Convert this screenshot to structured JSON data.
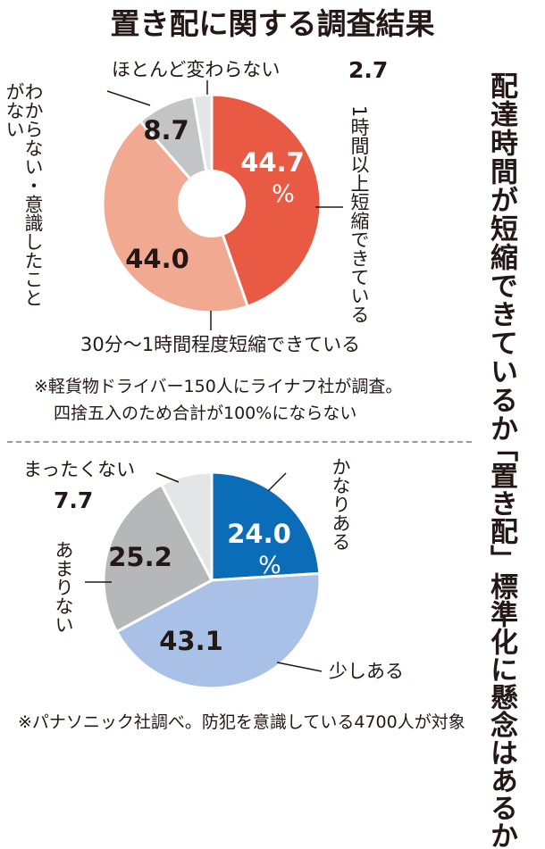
{
  "title": "置き配に関する調査結果",
  "chart_data": [
    {
      "type": "pie",
      "donut": true,
      "title": "配達時間が短縮できているか",
      "slices": [
        {
          "label": "1時間以上短縮できている",
          "value": 44.7,
          "display": "44.7",
          "unit": "%",
          "color": "#e85a43",
          "text_color": "#ffffff"
        },
        {
          "label": "30分〜1時間程度短縮できている",
          "value": 44.0,
          "display": "44.0",
          "color": "#f2a992",
          "text_color": "#231815"
        },
        {
          "label": "わからない・意識したことがない",
          "value": 8.7,
          "display": "8.7",
          "color": "#c3c4c6",
          "text_color": "#231815"
        },
        {
          "label": "ほとんど変わらない",
          "value": 2.7,
          "display": "2.7",
          "color": "#e4e5e6",
          "text_color": "#231815"
        }
      ],
      "note": [
        "※軽貨物ドライバー150人にライナフ社が調査。",
        "四捨五入のため合計が100%にならない"
      ]
    },
    {
      "type": "pie",
      "donut": false,
      "title": "「置き配」標準化に懸念はあるか",
      "slices": [
        {
          "label": "かなりある",
          "value": 24.0,
          "display": "24.0",
          "unit": "%",
          "color": "#0b6cb7",
          "text_color": "#ffffff"
        },
        {
          "label": "少しある",
          "value": 43.1,
          "display": "43.1",
          "color": "#a9c1e6",
          "text_color": "#231815"
        },
        {
          "label": "あまりない",
          "value": 25.2,
          "display": "25.2",
          "color": "#b6b7b9",
          "text_color": "#231815"
        },
        {
          "label": "まったくない",
          "value": 7.7,
          "display": "7.7",
          "color": "#e4e5e6",
          "text_color": "#231815"
        }
      ],
      "note": [
        "※パナソニック社調べ。防犯を意識している4700人が対象"
      ]
    }
  ]
}
